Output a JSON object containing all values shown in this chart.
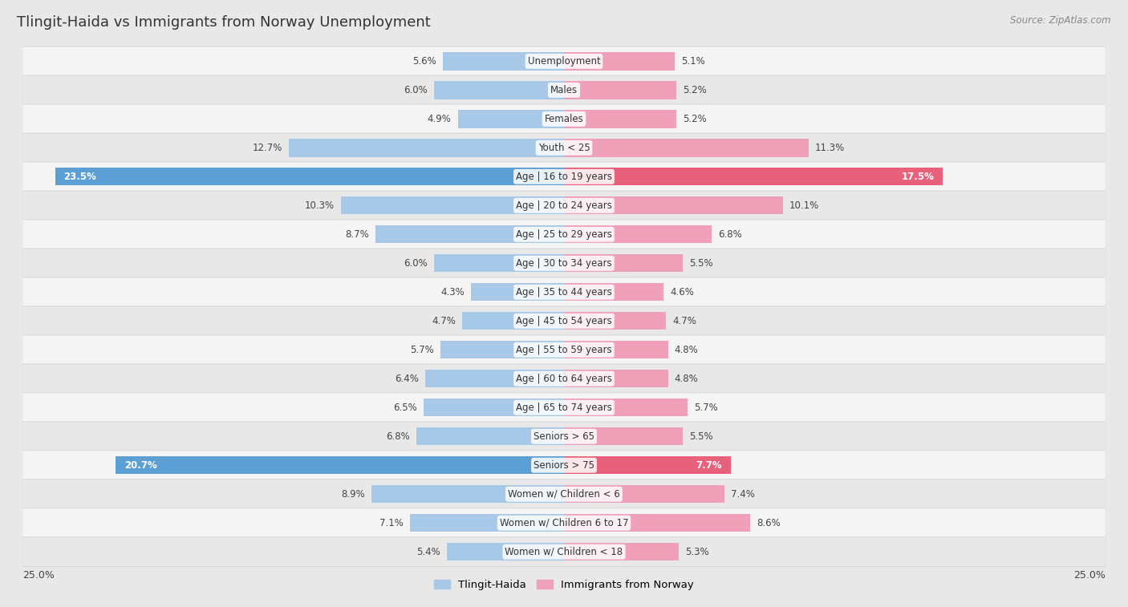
{
  "title": "Tlingit-Haida vs Immigrants from Norway Unemployment",
  "source": "Source: ZipAtlas.com",
  "categories": [
    "Unemployment",
    "Males",
    "Females",
    "Youth < 25",
    "Age | 16 to 19 years",
    "Age | 20 to 24 years",
    "Age | 25 to 29 years",
    "Age | 30 to 34 years",
    "Age | 35 to 44 years",
    "Age | 45 to 54 years",
    "Age | 55 to 59 years",
    "Age | 60 to 64 years",
    "Age | 65 to 74 years",
    "Seniors > 65",
    "Seniors > 75",
    "Women w/ Children < 6",
    "Women w/ Children 6 to 17",
    "Women w/ Children < 18"
  ],
  "tlingit_values": [
    5.6,
    6.0,
    4.9,
    12.7,
    23.5,
    10.3,
    8.7,
    6.0,
    4.3,
    4.7,
    5.7,
    6.4,
    6.5,
    6.8,
    20.7,
    8.9,
    7.1,
    5.4
  ],
  "norway_values": [
    5.1,
    5.2,
    5.2,
    11.3,
    17.5,
    10.1,
    6.8,
    5.5,
    4.6,
    4.7,
    4.8,
    4.8,
    5.7,
    5.5,
    7.7,
    7.4,
    8.6,
    5.3
  ],
  "tlingit_color": "#a8c8e8",
  "norway_color": "#f0a0b8",
  "tlingit_highlight_color": "#5b9fd4",
  "norway_highlight_color": "#e8607a",
  "highlight_rows": [
    4,
    14
  ],
  "max_val": 25.0,
  "background_color": "#e8e8e8",
  "row_bg_even": "#f5f5f5",
  "row_bg_odd": "#e8e8e8",
  "legend_label_tlingit": "Tlingit-Haida",
  "legend_label_norway": "Immigrants from Norway",
  "axis_label": "25.0%"
}
